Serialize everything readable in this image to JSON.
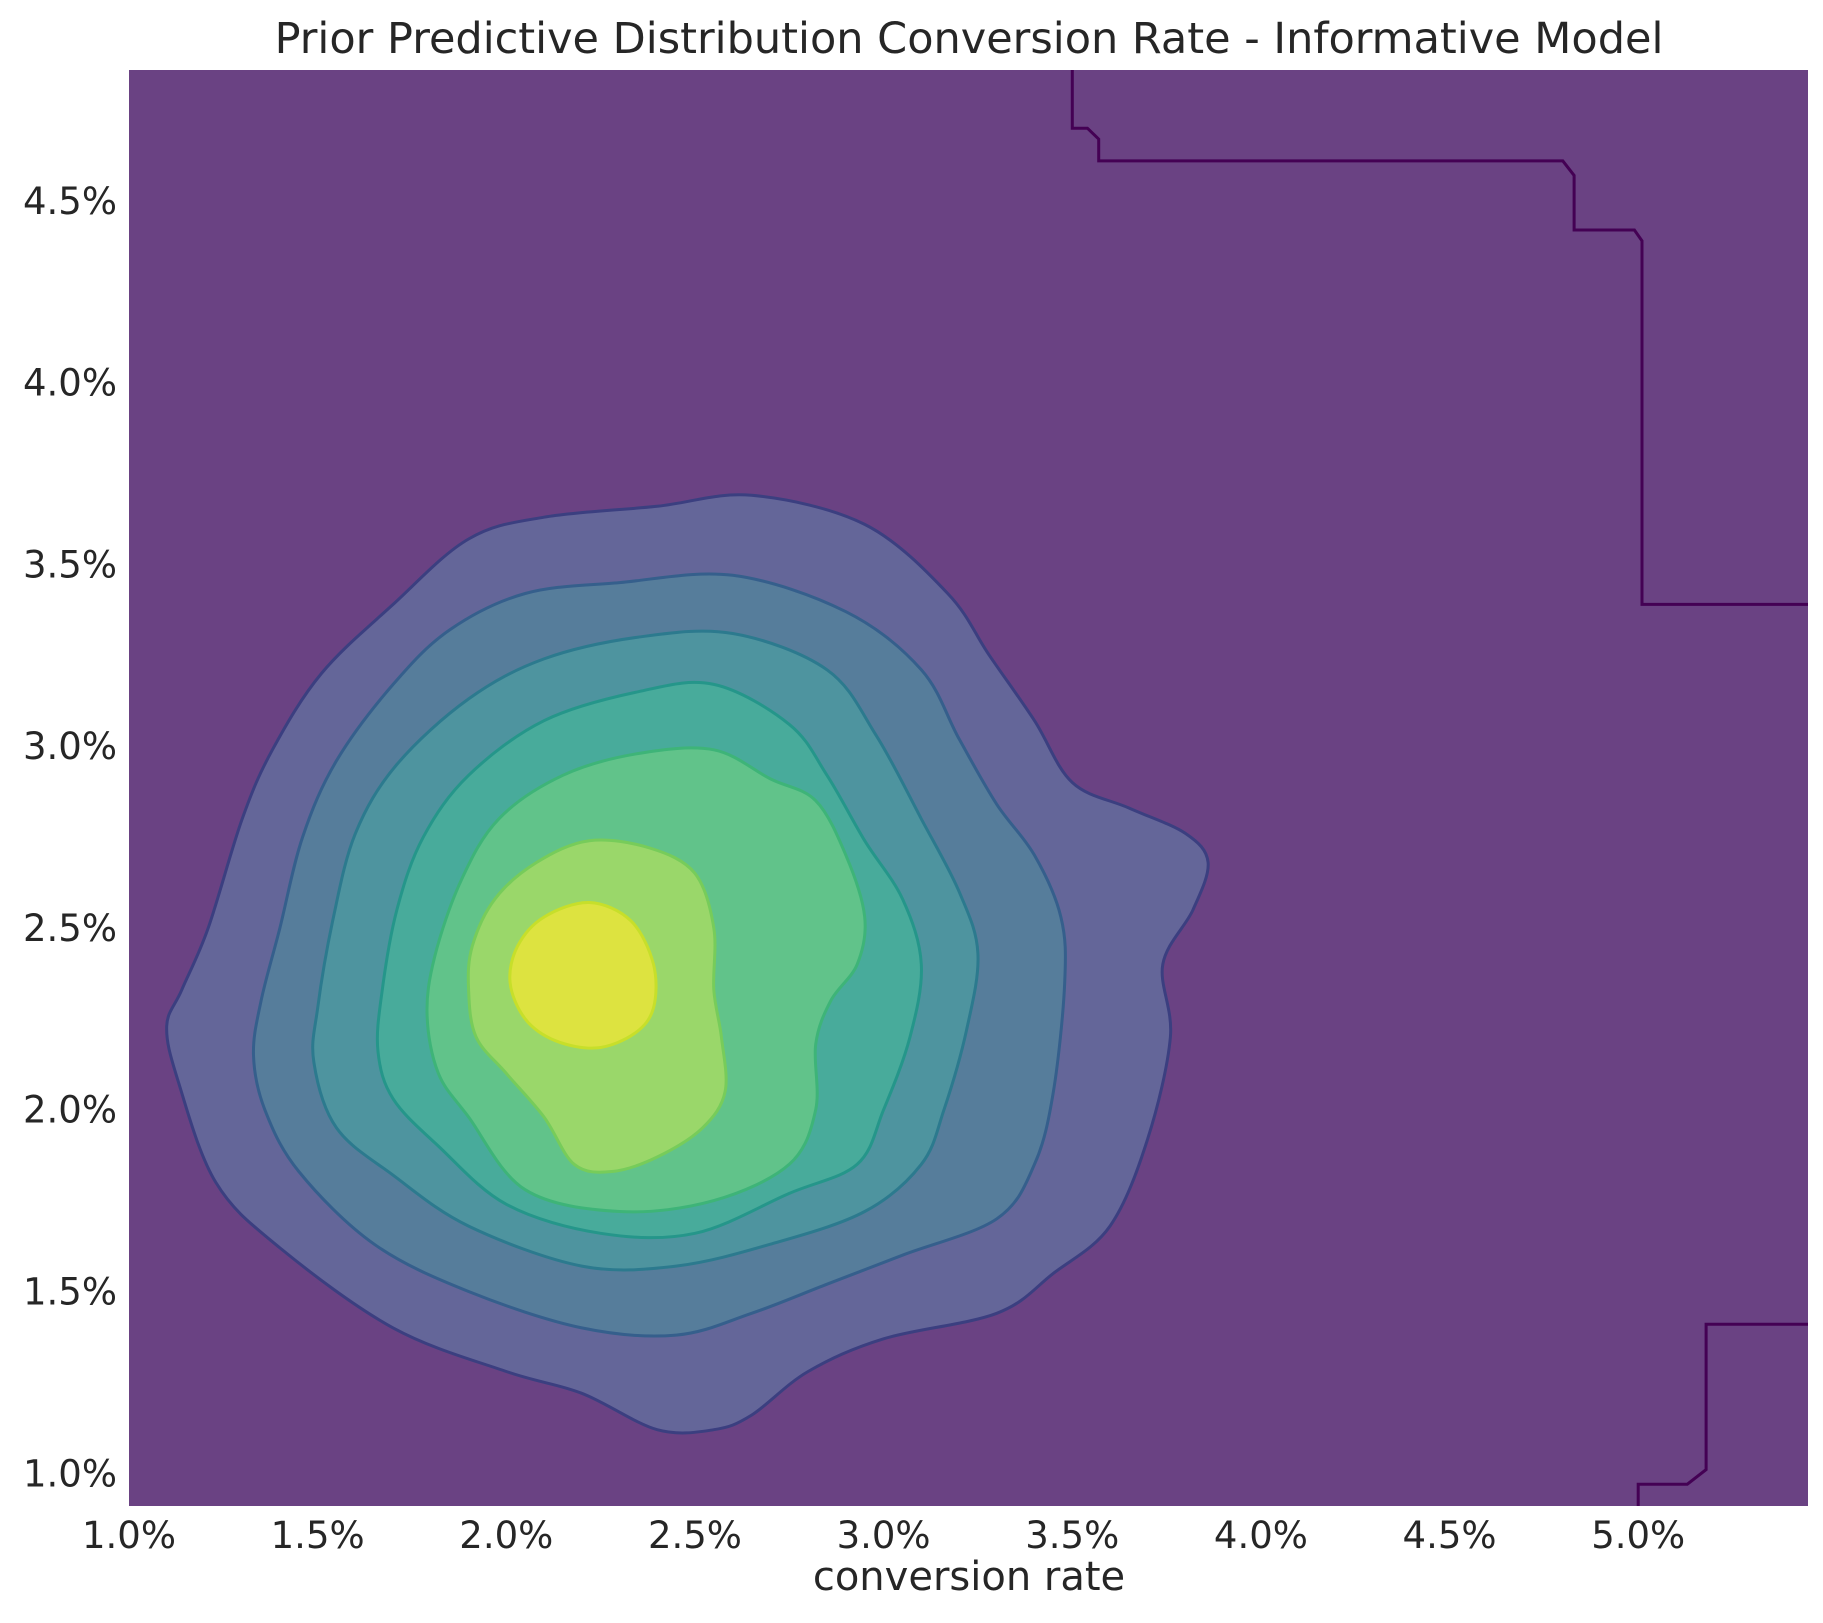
{
  "chart_data": {
    "type": "contour",
    "title": "Prior Predictive Distribution Conversion Rate - Informative Model",
    "xlabel": "conversion rate",
    "ylabel": "",
    "xlim": [
      0.01,
      0.0545
    ],
    "ylim": [
      0.0091,
      0.0486
    ],
    "x_ticks": [
      "1.0%",
      "1.5%",
      "2.0%",
      "2.5%",
      "3.0%",
      "3.5%",
      "4.0%",
      "4.5%",
      "5.0%"
    ],
    "x_tick_values": [
      0.01,
      0.015,
      0.02,
      0.025,
      0.03,
      0.035,
      0.04,
      0.045,
      0.05
    ],
    "y_ticks": [
      "1.0%",
      "1.5%",
      "2.0%",
      "2.5%",
      "3.0%",
      "3.5%",
      "4.0%",
      "4.5%"
    ],
    "y_tick_values": [
      0.01,
      0.015,
      0.02,
      0.025,
      0.03,
      0.035,
      0.04,
      0.045
    ],
    "colormap": "viridis",
    "grid": false,
    "density_peak": {
      "x": 0.0221,
      "y": 0.0237
    },
    "background_fill": "#6a4283",
    "levels": [
      {
        "level": 1,
        "fill": "#646699",
        "stroke": "#3b3f80",
        "points": [
          [
            0.011,
            0.0223
          ],
          [
            0.0114,
            0.0233
          ],
          [
            0.0121,
            0.025
          ],
          [
            0.013,
            0.028
          ],
          [
            0.0138,
            0.0299
          ],
          [
            0.0151,
            0.032
          ],
          [
            0.017,
            0.0339
          ],
          [
            0.019,
            0.0357
          ],
          [
            0.021,
            0.0363
          ],
          [
            0.024,
            0.0366
          ],
          [
            0.0265,
            0.0369
          ],
          [
            0.0295,
            0.0361
          ],
          [
            0.0317,
            0.0342
          ],
          [
            0.0328,
            0.0325
          ],
          [
            0.034,
            0.0307
          ],
          [
            0.035,
            0.029
          ],
          [
            0.0365,
            0.0283
          ],
          [
            0.038,
            0.0276
          ],
          [
            0.0386,
            0.0268
          ],
          [
            0.0382,
            0.0255
          ],
          [
            0.0374,
            0.024
          ],
          [
            0.0376,
            0.022
          ],
          [
            0.037,
            0.0192
          ],
          [
            0.036,
            0.0168
          ],
          [
            0.0345,
            0.0155
          ],
          [
            0.033,
            0.0144
          ],
          [
            0.03,
            0.0137
          ],
          [
            0.028,
            0.0128
          ],
          [
            0.0265,
            0.0116
          ],
          [
            0.0255,
            0.0112
          ],
          [
            0.024,
            0.0112
          ],
          [
            0.022,
            0.0122
          ],
          [
            0.02,
            0.0128
          ],
          [
            0.017,
            0.014
          ],
          [
            0.014,
            0.0162
          ],
          [
            0.0123,
            0.018
          ],
          [
            0.0113,
            0.0208
          ]
        ]
      },
      {
        "level": 2,
        "fill": "#567d9b",
        "stroke": "#355f8c",
        "points": [
          [
            0.0133,
            0.0215
          ],
          [
            0.0135,
            0.023
          ],
          [
            0.014,
            0.025
          ],
          [
            0.0146,
            0.0275
          ],
          [
            0.0155,
            0.0296
          ],
          [
            0.017,
            0.0317
          ],
          [
            0.0185,
            0.0332
          ],
          [
            0.0205,
            0.0342
          ],
          [
            0.023,
            0.0345
          ],
          [
            0.026,
            0.0347
          ],
          [
            0.029,
            0.0337
          ],
          [
            0.031,
            0.0321
          ],
          [
            0.032,
            0.0302
          ],
          [
            0.033,
            0.0284
          ],
          [
            0.034,
            0.027
          ],
          [
            0.0347,
            0.0253
          ],
          [
            0.0348,
            0.0235
          ],
          [
            0.0345,
            0.0205
          ],
          [
            0.034,
            0.0185
          ],
          [
            0.033,
            0.017
          ],
          [
            0.0305,
            0.016
          ],
          [
            0.0285,
            0.0152
          ],
          [
            0.0265,
            0.0144
          ],
          [
            0.0245,
            0.0138
          ],
          [
            0.022,
            0.014
          ],
          [
            0.019,
            0.015
          ],
          [
            0.0165,
            0.0163
          ],
          [
            0.0145,
            0.0183
          ],
          [
            0.0136,
            0.02
          ]
        ]
      },
      {
        "level": 3,
        "fill": "#4e949f",
        "stroke": "#2c7a8e",
        "points": [
          [
            0.0149,
            0.0213
          ],
          [
            0.015,
            0.0228
          ],
          [
            0.0154,
            0.0252
          ],
          [
            0.016,
            0.0276
          ],
          [
            0.0171,
            0.0295
          ],
          [
            0.019,
            0.0313
          ],
          [
            0.021,
            0.0324
          ],
          [
            0.0235,
            0.033
          ],
          [
            0.026,
            0.0331
          ],
          [
            0.0285,
            0.0321
          ],
          [
            0.0298,
            0.0303
          ],
          [
            0.031,
            0.028
          ],
          [
            0.032,
            0.026
          ],
          [
            0.0325,
            0.0243
          ],
          [
            0.0322,
            0.0222
          ],
          [
            0.0316,
            0.02
          ],
          [
            0.031,
            0.0185
          ],
          [
            0.0295,
            0.0172
          ],
          [
            0.027,
            0.0163
          ],
          [
            0.0245,
            0.0157
          ],
          [
            0.022,
            0.0157
          ],
          [
            0.019,
            0.0168
          ],
          [
            0.017,
            0.0182
          ],
          [
            0.0155,
            0.0195
          ]
        ]
      },
      {
        "level": 4,
        "fill": "#48ab9b",
        "stroke": "#25968a",
        "points": [
          [
            0.0166,
            0.0216
          ],
          [
            0.0167,
            0.0232
          ],
          [
            0.0171,
            0.0255
          ],
          [
            0.0178,
            0.0275
          ],
          [
            0.019,
            0.0292
          ],
          [
            0.021,
            0.0307
          ],
          [
            0.0235,
            0.0315
          ],
          [
            0.0255,
            0.0317
          ],
          [
            0.0275,
            0.0306
          ],
          [
            0.0285,
            0.0292
          ],
          [
            0.0295,
            0.0274
          ],
          [
            0.0305,
            0.0258
          ],
          [
            0.031,
            0.024
          ],
          [
            0.0307,
            0.022
          ],
          [
            0.03,
            0.02
          ],
          [
            0.0293,
            0.0185
          ],
          [
            0.0275,
            0.0177
          ],
          [
            0.025,
            0.0166
          ],
          [
            0.0225,
            0.0166
          ],
          [
            0.02,
            0.0174
          ],
          [
            0.0182,
            0.019
          ],
          [
            0.017,
            0.0203
          ]
        ]
      },
      {
        "level": 5,
        "fill": "#61c38a",
        "stroke": "#3eb478",
        "points": [
          [
            0.0179,
            0.0226
          ],
          [
            0.0181,
            0.0242
          ],
          [
            0.0188,
            0.0263
          ],
          [
            0.0198,
            0.028
          ],
          [
            0.0215,
            0.0292
          ],
          [
            0.0235,
            0.0298
          ],
          [
            0.0255,
            0.0299
          ],
          [
            0.027,
            0.0291
          ],
          [
            0.0282,
            0.0285
          ],
          [
            0.029,
            0.027
          ],
          [
            0.0295,
            0.0253
          ],
          [
            0.0293,
            0.024
          ],
          [
            0.0286,
            0.023
          ],
          [
            0.0282,
            0.0218
          ],
          [
            0.0282,
            0.02
          ],
          [
            0.0275,
            0.0185
          ],
          [
            0.0255,
            0.0175
          ],
          [
            0.023,
            0.0172
          ],
          [
            0.0205,
            0.0178
          ],
          [
            0.019,
            0.0198
          ],
          [
            0.0182,
            0.021
          ]
        ]
      },
      {
        "level": 6,
        "fill": "#9ad76a",
        "stroke": "#77cc5a",
        "points": [
          [
            0.019,
            0.0233
          ],
          [
            0.0191,
            0.0245
          ],
          [
            0.0197,
            0.0258
          ],
          [
            0.0208,
            0.0268
          ],
          [
            0.0222,
            0.0274
          ],
          [
            0.0238,
            0.0272
          ],
          [
            0.025,
            0.0265
          ],
          [
            0.0255,
            0.025
          ],
          [
            0.0255,
            0.0233
          ],
          [
            0.0257,
            0.022
          ],
          [
            0.0258,
            0.0205
          ],
          [
            0.0252,
            0.0195
          ],
          [
            0.024,
            0.0187
          ],
          [
            0.0228,
            0.0183
          ],
          [
            0.0218,
            0.0185
          ],
          [
            0.021,
            0.0198
          ],
          [
            0.02,
            0.021
          ],
          [
            0.0192,
            0.022
          ]
        ]
      },
      {
        "level": 7,
        "fill": "#dde340",
        "stroke": "#c7df2a",
        "points": [
          [
            0.0201,
            0.0235
          ],
          [
            0.0203,
            0.0245
          ],
          [
            0.021,
            0.0253
          ],
          [
            0.0222,
            0.0257
          ],
          [
            0.0233,
            0.0252
          ],
          [
            0.0239,
            0.024
          ],
          [
            0.0239,
            0.0228
          ],
          [
            0.0234,
            0.0221
          ],
          [
            0.0224,
            0.0217
          ],
          [
            0.0213,
            0.0219
          ],
          [
            0.0205,
            0.0225
          ]
        ]
      }
    ],
    "boundary_lines": {
      "stroke": "#440154",
      "top_right": [
        [
          0.035,
          0.0486
        ],
        [
          0.035,
          0.047
        ],
        [
          0.0354,
          0.047
        ],
        [
          0.0357,
          0.0467
        ],
        [
          0.0357,
          0.0461
        ],
        [
          0.048,
          0.0461
        ],
        [
          0.0483,
          0.0457
        ],
        [
          0.0483,
          0.0442
        ],
        [
          0.0499,
          0.0442
        ],
        [
          0.0501,
          0.0439
        ],
        [
          0.0501,
          0.0339
        ],
        [
          0.0545,
          0.0339
        ]
      ],
      "bottom_right": [
        [
          0.05,
          0.0091
        ],
        [
          0.05,
          0.0097
        ],
        [
          0.0513,
          0.0097
        ],
        [
          0.0518,
          0.0101
        ],
        [
          0.0518,
          0.0141
        ],
        [
          0.0545,
          0.0141
        ]
      ]
    }
  }
}
